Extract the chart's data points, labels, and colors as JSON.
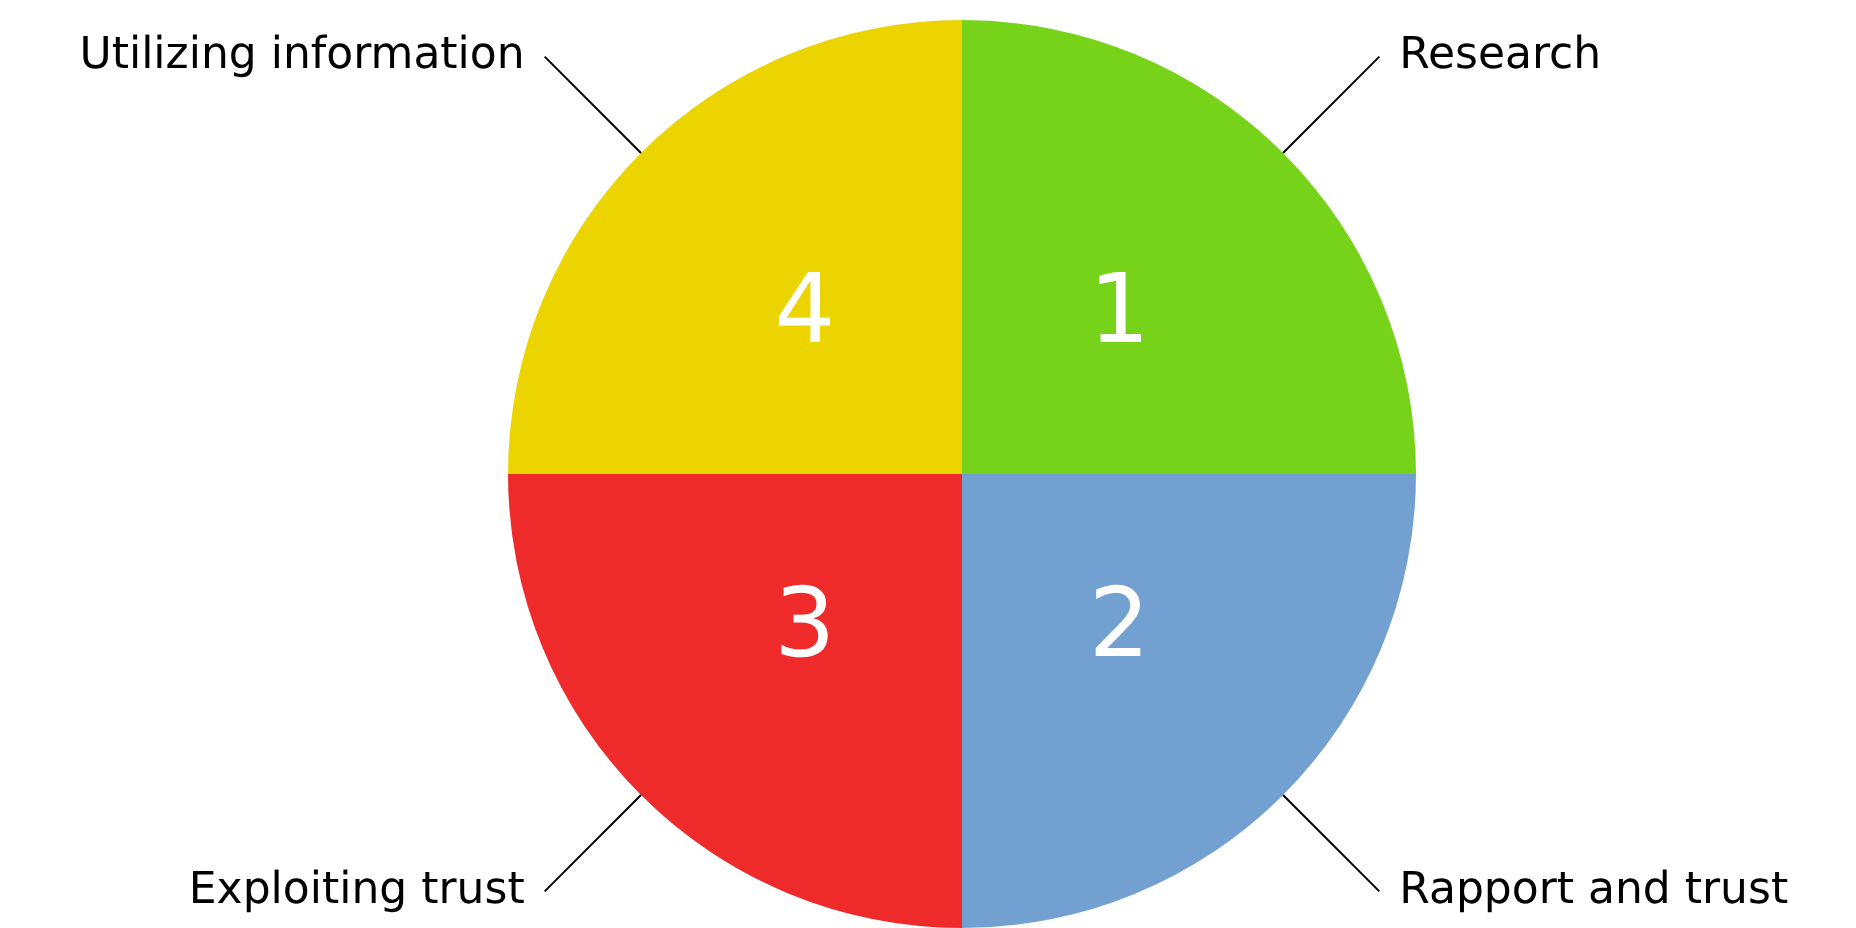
{
  "chart_data": {
    "type": "pie",
    "categories": [
      "Research",
      "Rapport and trust",
      "Exploiting trust",
      "Utilizing information"
    ],
    "values": [
      25,
      25,
      25,
      25
    ],
    "colors": [
      "#77d31a",
      "#72a0d0",
      "#ee2a2a",
      "#ecd400"
    ],
    "annotations": [
      "1",
      "2",
      "3",
      "4"
    ],
    "legend": false
  }
}
